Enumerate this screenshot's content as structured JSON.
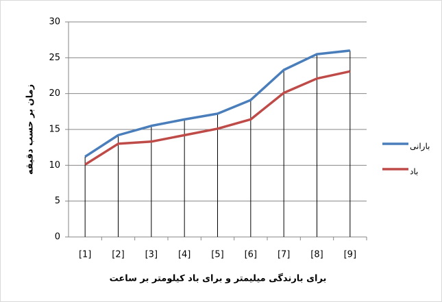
{
  "chart_data": {
    "type": "line",
    "y_axis_label": "زمان بر حسب دقیقه",
    "x_axis_label": "برای بارندگی میلیمتر و برای باد کیلومتر بر ساعت",
    "categories": [
      "[1]",
      "[2]",
      "[3]",
      "[4]",
      "[5]",
      "[6]",
      "[7]",
      "[8]",
      "[9]"
    ],
    "series": [
      {
        "name": "بارانی",
        "color": "#4a7ebb",
        "values": [
          11.2,
          14.2,
          15.5,
          16.4,
          17.2,
          19.1,
          23.3,
          25.5,
          26.0
        ]
      },
      {
        "name": "باد",
        "color": "#be4b48",
        "values": [
          10.1,
          13.0,
          13.3,
          14.2,
          15.1,
          16.4,
          20.1,
          22.1,
          23.1
        ]
      }
    ],
    "ylim": [
      0,
      30
    ],
    "yticks": [
      0,
      5,
      10,
      15,
      20,
      25,
      30
    ],
    "grid": true,
    "drop_lines": true,
    "legend": "right"
  }
}
